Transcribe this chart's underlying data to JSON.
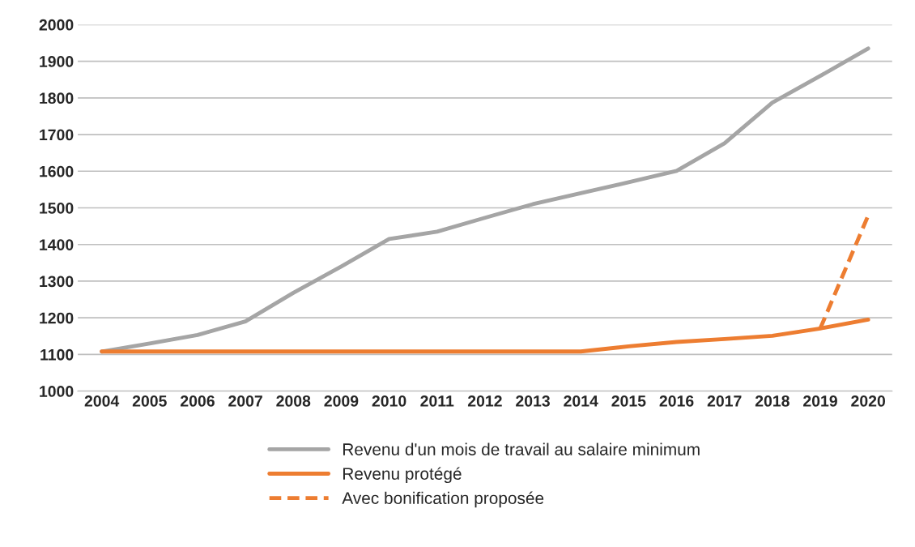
{
  "chart_data": {
    "type": "line",
    "categories": [
      "2004",
      "2005",
      "2006",
      "2007",
      "2008",
      "2009",
      "2010",
      "2011",
      "2012",
      "2013",
      "2014",
      "2015",
      "2016",
      "2017",
      "2018",
      "2019",
      "2020"
    ],
    "series": [
      {
        "name": "Revenu d'un mois de travail au salaire minimum",
        "color": "#a5a5a5",
        "line_style": "solid",
        "values": [
          1108,
          1130,
          1153,
          1190,
          1268,
          1340,
          1415,
          1435,
          1473,
          1510,
          1540,
          1570,
          1601,
          1676,
          1787,
          1860,
          1935
        ]
      },
      {
        "name": "Revenu protégé",
        "color": "#ed7d31",
        "line_style": "solid",
        "values": [
          1108,
          1108,
          1108,
          1108,
          1108,
          1108,
          1108,
          1108,
          1108,
          1108,
          1108,
          1122,
          1134,
          1142,
          1151,
          1171,
          1195
        ]
      },
      {
        "name": "Avec bonification proposée",
        "color": "#ed7d31",
        "line_style": "dashed",
        "values": [
          null,
          null,
          null,
          null,
          null,
          null,
          null,
          null,
          null,
          null,
          null,
          null,
          null,
          null,
          null,
          1171,
          1479
        ]
      }
    ],
    "ylim": [
      1000,
      2000
    ],
    "yticks": [
      1000,
      1100,
      1200,
      1300,
      1400,
      1500,
      1600,
      1700,
      1800,
      1900,
      2000
    ],
    "grid": "y",
    "legend": "bottom",
    "marker": "none"
  }
}
